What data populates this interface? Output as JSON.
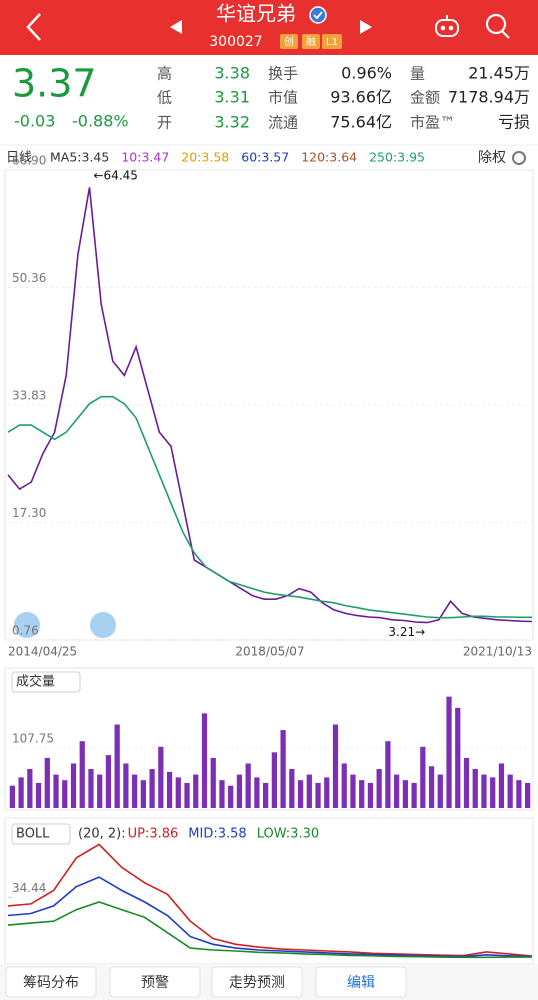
{
  "header": {
    "title": "华谊兄弟",
    "code": "300027",
    "tags": [
      "创",
      "融",
      "L1"
    ]
  },
  "quote": {
    "price": "3.37",
    "change": "-0.03",
    "change_pct": "-0.88%",
    "stats": [
      [
        {
          "label": "高",
          "value": "3.38",
          "color": "#1a9b3b"
        },
        {
          "label": "换手",
          "value": "0.96%",
          "color": "#222"
        },
        {
          "label": "量",
          "value": "21.45万",
          "color": "#222"
        }
      ],
      [
        {
          "label": "低",
          "value": "3.31",
          "color": "#1a9b3b"
        },
        {
          "label": "市值",
          "value": "93.66亿",
          "color": "#222"
        },
        {
          "label": "金额",
          "value": "7178.94万",
          "color": "#222"
        }
      ],
      [
        {
          "label": "开",
          "value": "3.32",
          "color": "#1a9b3b"
        },
        {
          "label": "流通",
          "value": "75.64亿",
          "color": "#222"
        },
        {
          "label": "市盈™",
          "value": "亏损",
          "color": "#222"
        }
      ]
    ]
  },
  "ma_bar": {
    "period": "日线",
    "items": [
      {
        "text": "MA5:3.45",
        "color": "#333333"
      },
      {
        "text": "10:3.47",
        "color": "#b030d0"
      },
      {
        "text": "20:3.58",
        "color": "#e0a000"
      },
      {
        "text": "60:3.57",
        "color": "#1e3cc8"
      },
      {
        "text": "120:3.64",
        "color": "#a0522d"
      },
      {
        "text": "250:3.95",
        "color": "#1f9e6a"
      }
    ],
    "adjust": "除权"
  },
  "chart_data": [
    {
      "type": "line",
      "ylim": [
        0.76,
        66.9
      ],
      "yticks": [
        0.76,
        {
          "value": 17.3,
          "label": "17.30"
        },
        {
          "value": 33.83,
          "label": "33.83"
        },
        {
          "value": 50.36,
          "label": "50.36"
        },
        {
          "value": 66.9,
          "label": "66.90"
        }
      ],
      "grid": true,
      "x_labels": [
        "2014/04/25",
        "2018/05/07",
        "2021/10/13"
      ],
      "annotations": [
        "←64.45",
        "3.21→"
      ],
      "series": [
        {
          "color": "#6a1b9a",
          "values": [
            24,
            22,
            23,
            27,
            30,
            38,
            55,
            64.45,
            48,
            40,
            38,
            42,
            36,
            30,
            28,
            20,
            12,
            11,
            10,
            9,
            8,
            7,
            6.5,
            6.5,
            7,
            8,
            7.5,
            6,
            5,
            4.5,
            4.2,
            4,
            3.9,
            3.6,
            3.5,
            3.3,
            3.21,
            3.6,
            6.2,
            4.5,
            4,
            3.8,
            3.6,
            3.5,
            3.4,
            3.37
          ]
        },
        {
          "color": "#1f9e6a",
          "values": [
            30,
            31,
            31,
            30,
            29,
            30,
            32,
            34,
            35,
            35,
            34,
            32,
            28,
            24,
            20,
            16,
            13,
            11,
            10,
            9,
            8.5,
            8,
            7.5,
            7.2,
            7,
            6.8,
            6.5,
            6.2,
            6,
            5.6,
            5.3,
            5,
            4.8,
            4.6,
            4.4,
            4.2,
            4,
            3.9,
            3.9,
            4,
            4.1,
            4.1,
            4,
            4,
            3.95,
            3.95
          ]
        }
      ]
    },
    {
      "type": "bar",
      "title": "成交量",
      "ylim": [
        0,
        212
      ],
      "yticks": [
        {
          "value": 107.75,
          "label": "107.75"
        }
      ],
      "color": "#7a2fb5",
      "values": [
        40,
        55,
        70,
        45,
        90,
        60,
        50,
        80,
        120,
        70,
        60,
        95,
        150,
        80,
        60,
        50,
        70,
        110,
        65,
        55,
        45,
        60,
        170,
        90,
        50,
        40,
        60,
        80,
        55,
        45,
        100,
        140,
        70,
        50,
        60,
        45,
        55,
        150,
        80,
        60,
        50,
        45,
        70,
        120,
        60,
        50,
        45,
        110,
        75,
        60,
        200,
        180,
        90,
        70,
        60,
        55,
        80,
        60,
        50,
        45
      ]
    },
    {
      "type": "line",
      "title": "BOLL",
      "params": "(20, 2):",
      "legend": [
        {
          "text": "UP:3.86",
          "color": "#d02020"
        },
        {
          "text": "MID:3.58",
          "color": "#1e3cc8"
        },
        {
          "text": "LOW:3.30",
          "color": "#1a8a2a"
        }
      ],
      "ylim": [
        0.76,
        66.9
      ],
      "yticks": [
        {
          "value": 34.44,
          "label": "34.44"
        }
      ],
      "grid": false,
      "series": [
        {
          "color": "#d02020",
          "values": [
            30,
            31,
            38,
            55,
            62,
            50,
            42,
            36,
            22,
            13,
            10,
            8.5,
            7.5,
            7,
            6.5,
            6,
            5.3,
            5,
            4.6,
            4.3,
            4.1,
            6,
            5,
            3.9
          ]
        },
        {
          "color": "#1e3cc8",
          "values": [
            25,
            26,
            30,
            40,
            45,
            38,
            32,
            25,
            14,
            10,
            8,
            7,
            6.5,
            6,
            5.5,
            5,
            4.6,
            4.3,
            4,
            3.8,
            3.6,
            4.5,
            4,
            3.6
          ]
        },
        {
          "color": "#1a8a2a",
          "values": [
            20,
            21,
            22,
            28,
            32,
            28,
            24,
            16,
            8,
            7,
            6.5,
            5.8,
            5.5,
            5,
            4.6,
            4.2,
            4,
            3.7,
            3.5,
            3.3,
            3.2,
            3.2,
            3.3,
            3.3
          ]
        }
      ]
    }
  ],
  "tabs": [
    "筹码分布",
    "预警",
    "走势预测",
    "编辑"
  ]
}
